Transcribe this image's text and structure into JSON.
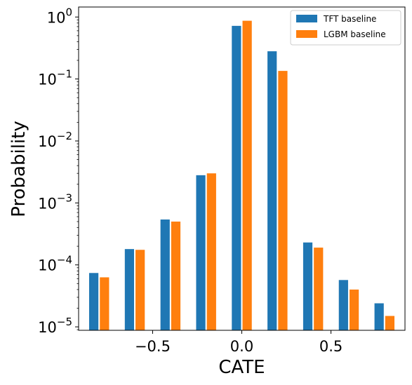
{
  "chart_data": {
    "type": "bar",
    "xlabel": "CATE",
    "ylabel": "Probability",
    "yscale": "log",
    "ylim": [
      8.8e-06,
      1.45
    ],
    "xlim": [
      -0.915,
      0.915
    ],
    "x_ticks": [
      {
        "value": -0.5,
        "label": "−0.5"
      },
      {
        "value": 0.0,
        "label": "0.0"
      },
      {
        "value": 0.5,
        "label": "0.5"
      }
    ],
    "y_ticks": [
      {
        "value": 1e-05,
        "base": "10",
        "exp": "−5"
      },
      {
        "value": 0.0001,
        "base": "10",
        "exp": "−4"
      },
      {
        "value": 0.001,
        "base": "10",
        "exp": "−3"
      },
      {
        "value": 0.01,
        "base": "10",
        "exp": "−2"
      },
      {
        "value": 0.1,
        "base": "10",
        "exp": "−1"
      },
      {
        "value": 1,
        "base": "10",
        "exp": "0"
      }
    ],
    "bin_centers": [
      -0.8,
      -0.6,
      -0.4,
      -0.2,
      0.0,
      0.2,
      0.4,
      0.6,
      0.8
    ],
    "bar_width": 0.052,
    "series": [
      {
        "name": "TFT baseline",
        "color": "#1f77b4",
        "x": [
          -0.83,
          -0.63,
          -0.43,
          -0.23,
          -0.03,
          0.17,
          0.37,
          0.57,
          0.77
        ],
        "values": [
          7.4e-05,
          0.00018,
          0.00054,
          0.0028,
          0.72,
          0.28,
          0.00023,
          5.7e-05,
          2.4e-05
        ]
      },
      {
        "name": "LGBM baseline",
        "color": "#ff7f0e",
        "x": [
          -0.77,
          -0.57,
          -0.37,
          -0.17,
          0.03,
          0.23,
          0.43,
          0.63,
          0.83
        ],
        "values": [
          6.3e-05,
          0.000175,
          0.0005,
          0.003,
          0.87,
          0.135,
          0.00019,
          4e-05,
          1.5e-05
        ]
      }
    ],
    "legend": {
      "position": "top-right"
    },
    "grid": false
  }
}
